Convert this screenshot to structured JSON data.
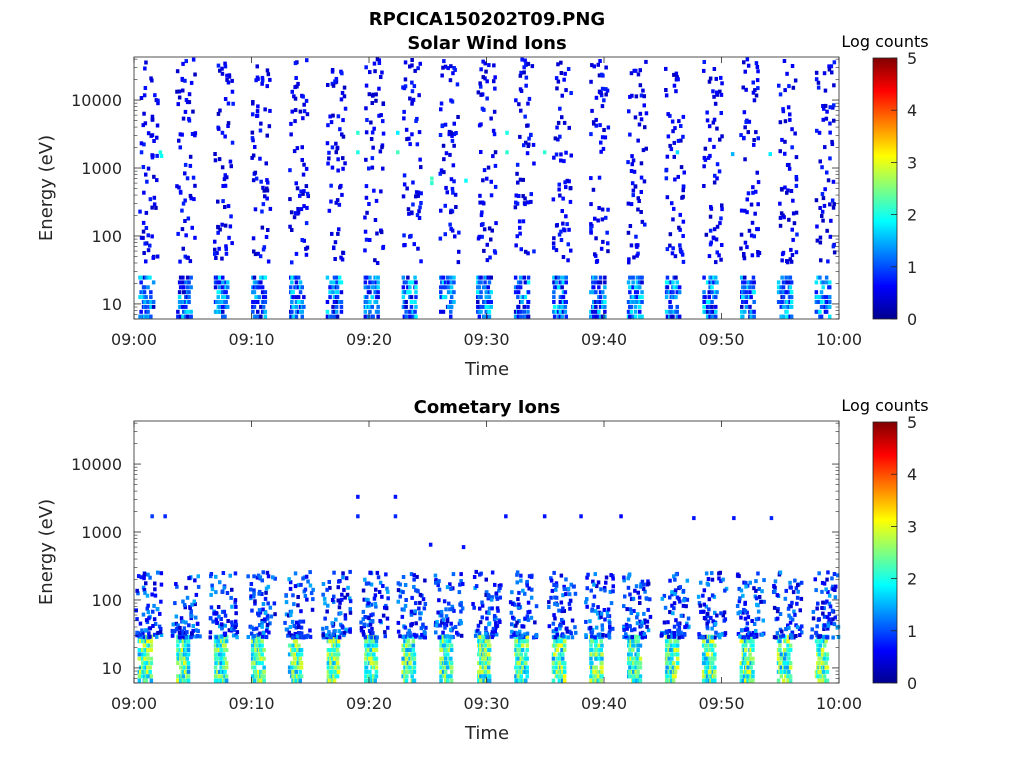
{
  "figure_title": "RPCICA150202T09.PNG",
  "chart_data": [
    {
      "type": "heatmap",
      "title": "Solar Wind Ions",
      "xlabel": "Time",
      "ylabel": "Energy (eV)",
      "x_ticks": [
        "09:00",
        "09:10",
        "09:20",
        "09:30",
        "09:40",
        "09:50",
        "10:00"
      ],
      "y_ticks": [
        {
          "value": 10,
          "label": "10"
        },
        {
          "value": 100,
          "label": "100"
        },
        {
          "value": 1000,
          "label": "1000"
        },
        {
          "value": 10000,
          "label": "10000"
        }
      ],
      "yscale": "log",
      "ylim": [
        6,
        43000
      ],
      "xlim_minutes": [
        0,
        60
      ],
      "colorbar": {
        "label": "Log counts",
        "min": 0,
        "max": 5,
        "ticks": [
          "0",
          "1",
          "2",
          "3",
          "4",
          "5"
        ],
        "colormap": "jet"
      },
      "sweep_period_minutes": 3.2,
      "cells": [
        {
          "t": 2.1,
          "e": 1700,
          "v": 2.0
        },
        {
          "t": 2.2,
          "e": 1500,
          "v": 1.9
        },
        {
          "t": 18.9,
          "e": 3300,
          "v": 2.1
        },
        {
          "t": 18.9,
          "e": 1700,
          "v": 2.0
        },
        {
          "t": 22.3,
          "e": 3300,
          "v": 1.8
        },
        {
          "t": 22.3,
          "e": 1700,
          "v": 2.2
        },
        {
          "t": 25.2,
          "e": 700,
          "v": 2.2
        },
        {
          "t": 25.2,
          "e": 600,
          "v": 2.1
        },
        {
          "t": 28.1,
          "e": 650,
          "v": 1.9
        },
        {
          "t": 31.6,
          "e": 3300,
          "v": 2.0
        },
        {
          "t": 31.6,
          "e": 1700,
          "v": 2.1
        },
        {
          "t": 34.8,
          "e": 1700,
          "v": 2.1
        },
        {
          "t": 46.1,
          "e": 1700,
          "v": 1.7
        },
        {
          "t": 50.8,
          "e": 1600,
          "v": 1.5
        },
        {
          "t": 54.0,
          "e": 1600,
          "v": 1.8
        }
      ]
    },
    {
      "type": "heatmap",
      "title": "Cometary Ions",
      "xlabel": "Time",
      "ylabel": "Energy (eV)",
      "x_ticks": [
        "09:00",
        "09:10",
        "09:20",
        "09:30",
        "09:40",
        "09:50",
        "10:00"
      ],
      "y_ticks": [
        {
          "value": 10,
          "label": "10"
        },
        {
          "value": 100,
          "label": "100"
        },
        {
          "value": 1000,
          "label": "1000"
        },
        {
          "value": 10000,
          "label": "10000"
        }
      ],
      "yscale": "log",
      "ylim": [
        6,
        43000
      ],
      "xlim_minutes": [
        0,
        60
      ],
      "colorbar": {
        "label": "Log counts",
        "min": 0,
        "max": 5,
        "ticks": [
          "0",
          "1",
          "2",
          "3",
          "4",
          "5"
        ],
        "colormap": "jet"
      },
      "sweep_period_minutes": 3.2,
      "cells": [
        {
          "t": 1.4,
          "e": 1700,
          "v": 0.9
        },
        {
          "t": 2.5,
          "e": 1700,
          "v": 0.8
        },
        {
          "t": 18.9,
          "e": 1700,
          "v": 0.8
        },
        {
          "t": 18.9,
          "e": 3300,
          "v": 0.7
        },
        {
          "t": 22.1,
          "e": 3300,
          "v": 0.7
        },
        {
          "t": 22.1,
          "e": 1700,
          "v": 0.8
        },
        {
          "t": 25.1,
          "e": 650,
          "v": 0.7
        },
        {
          "t": 27.9,
          "e": 600,
          "v": 0.7
        },
        {
          "t": 31.5,
          "e": 1700,
          "v": 0.7
        },
        {
          "t": 34.8,
          "e": 1700,
          "v": 0.7
        },
        {
          "t": 37.9,
          "e": 1700,
          "v": 0.7
        },
        {
          "t": 41.3,
          "e": 1700,
          "v": 0.6
        },
        {
          "t": 47.5,
          "e": 1600,
          "v": 0.7
        },
        {
          "t": 50.9,
          "e": 1600,
          "v": 0.7
        },
        {
          "t": 54.1,
          "e": 1600,
          "v": 0.8
        }
      ]
    }
  ]
}
